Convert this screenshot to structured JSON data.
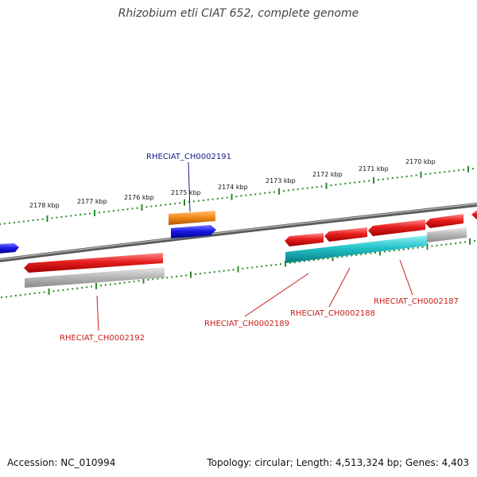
{
  "title": "Rhizobium etli CIAT 652, complete genome",
  "accession": "Accession: NC_010994",
  "topology": "Topology: circular; Length: 4,513,324 bp; Genes: 4,403",
  "ticks": [
    "2178 kbp",
    "2177 kbp",
    "2176 kbp",
    "2175 kbp",
    "2174 kbp",
    "2173 kbp",
    "2172 kbp",
    "2171 kbp",
    "2170 kbp"
  ],
  "genes": {
    "rheciat_ch0002191": "RHECIAT_CH0002191",
    "rheciat_ch0002192": "RHECIAT_CH0002192",
    "rheciat_ch0002189": "RHECIAT_CH0002189",
    "rheciat_ch0002188": "RHECIAT_CH0002188",
    "rheciat_ch0002187": "RHECIAT_CH0002187"
  },
  "colors": {
    "forward_cds": "#e81e1e",
    "reverse_cds": "#1a1ae6",
    "rna": "#f28c1a",
    "gene": "#b4b4b4",
    "misc": "#22c2c8",
    "ticks": "#2a8a2a",
    "backbone": "#7a7a7a",
    "label_blue": "#1a1a8c",
    "label_red": "#c81e1e"
  }
}
